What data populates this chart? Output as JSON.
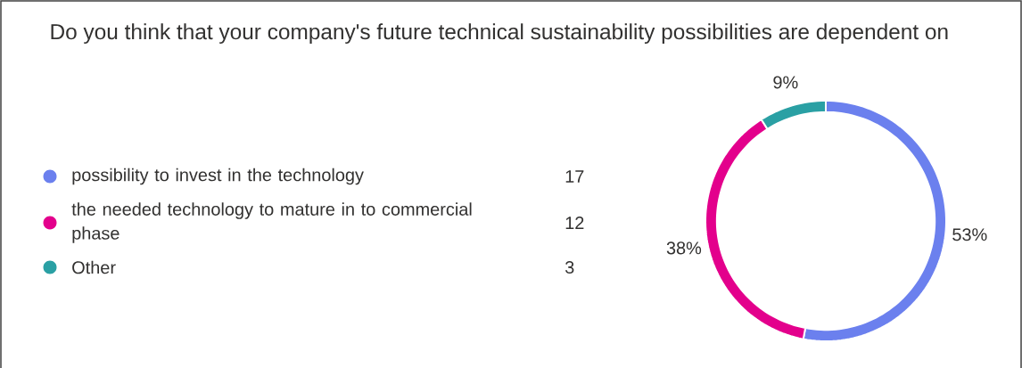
{
  "chart_data": {
    "type": "donut",
    "title": "Do you think that your company's future technical sustainability possibilities are dependent on",
    "categories": [
      "possibility to invest in the technology",
      "the needed technology to mature in to commercial phase",
      "Other"
    ],
    "values": [
      53,
      38,
      9
    ],
    "value_labels": [
      "53%",
      "38%",
      "9%"
    ],
    "annotations": [
      "17",
      "12",
      "3"
    ],
    "colors": [
      "#6b80ee",
      "#e3008c",
      "#2aa0a4"
    ],
    "legend": "left"
  }
}
